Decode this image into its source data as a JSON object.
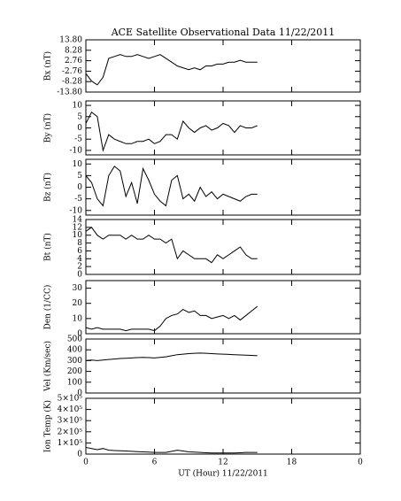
{
  "chart_data": [
    {
      "type": "line",
      "title": "ACE Satellite Observational Data   11/22/2011",
      "ylabel": "Bx (nT)",
      "color": "#000000",
      "xlim": [
        0,
        24
      ],
      "ylim": [
        -13.8,
        13.8
      ],
      "yticks": [
        {
          "value": 13.8,
          "label": "13.80"
        },
        8.28,
        2.76,
        -2.76,
        -8.28,
        {
          "value": -13.8,
          "label": "-13.80"
        }
      ],
      "x": [
        0,
        0.5,
        1,
        1.5,
        2,
        2.5,
        3,
        3.5,
        4,
        4.5,
        5,
        5.5,
        6,
        6.5,
        7,
        7.5,
        8,
        8.5,
        9,
        9.5,
        10,
        10.5,
        11,
        11.5,
        12,
        12.5,
        13,
        13.5,
        14,
        14.5,
        15
      ],
      "values": [
        -4,
        -8,
        -10,
        -6,
        4,
        5,
        6,
        5,
        5,
        6,
        5,
        4,
        5,
        6,
        4,
        2,
        0,
        -1,
        -2,
        -1,
        -2,
        0,
        0,
        1,
        1,
        2,
        2,
        3,
        2,
        2,
        2
      ]
    },
    {
      "type": "line",
      "ylabel": "By (nT)",
      "color": "#000000",
      "xlim": [
        0,
        24
      ],
      "ylim": [
        -12,
        12
      ],
      "yticks": [
        10,
        5,
        0,
        -5,
        -10
      ],
      "x": [
        0,
        0.5,
        1,
        1.5,
        2,
        2.5,
        3,
        3.5,
        4,
        4.5,
        5,
        5.5,
        6,
        6.5,
        7,
        7.5,
        8,
        8.5,
        9,
        9.5,
        10,
        10.5,
        11,
        11.5,
        12,
        12.5,
        13,
        13.5,
        14,
        14.5,
        15
      ],
      "values": [
        2,
        7,
        5,
        -10,
        -3,
        -5,
        -6,
        -7,
        -7,
        -6,
        -6,
        -5,
        -7,
        -6,
        -3,
        -3,
        -5,
        3,
        0,
        -2,
        0,
        1,
        -1,
        0,
        2,
        1,
        -2,
        1,
        0,
        0,
        1
      ]
    },
    {
      "type": "line",
      "ylabel": "Bz (nT)",
      "color": "#000000",
      "xlim": [
        0,
        24
      ],
      "ylim": [
        -12,
        12
      ],
      "yticks": [
        10,
        5,
        0,
        -5,
        -10
      ],
      "x": [
        0,
        0.5,
        1,
        1.5,
        2,
        2.5,
        3,
        3.5,
        4,
        4.5,
        5,
        5.5,
        6,
        6.5,
        7,
        7.5,
        8,
        8.5,
        9,
        9.5,
        10,
        10.5,
        11,
        11.5,
        12,
        12.5,
        13,
        13.5,
        14,
        14.5,
        15
      ],
      "values": [
        5,
        2,
        -5,
        -8,
        5,
        9,
        7,
        -4,
        2,
        -7,
        8,
        3,
        -3,
        -6,
        -8,
        3,
        5,
        -5,
        -3,
        -6,
        0,
        -4,
        -2,
        -5,
        -3,
        -4,
        -5,
        -6,
        -4,
        -3,
        -3
      ]
    },
    {
      "type": "line",
      "ylabel": "Bt (nT)",
      "color": "#000000",
      "xlim": [
        0,
        24
      ],
      "ylim": [
        0,
        14
      ],
      "yticks": [
        14,
        12,
        10,
        8,
        6,
        4,
        2,
        0
      ],
      "x": [
        0,
        0.5,
        1,
        1.5,
        2,
        2.5,
        3,
        3.5,
        4,
        4.5,
        5,
        5.5,
        6,
        6.5,
        7,
        7.5,
        8,
        8.5,
        9,
        9.5,
        10,
        10.5,
        11,
        11.5,
        12,
        12.5,
        13,
        13.5,
        14,
        14.5,
        15
      ],
      "values": [
        11,
        12,
        10,
        9,
        10,
        10,
        10,
        9,
        10,
        9,
        9,
        10,
        9,
        9,
        8,
        9,
        4,
        6,
        5,
        4,
        4,
        4,
        3,
        5,
        4,
        5,
        6,
        7,
        5,
        4,
        4
      ]
    },
    {
      "type": "line",
      "ylabel": "Den (1/CC)",
      "color": "#000000",
      "xlim": [
        0,
        24
      ],
      "ylim": [
        0,
        35
      ],
      "yticks": [
        30,
        20,
        10,
        0
      ],
      "x": [
        0,
        0.5,
        1,
        1.5,
        2,
        2.5,
        3,
        3.5,
        4,
        4.5,
        5,
        5.5,
        6,
        6.5,
        7,
        7.5,
        8,
        8.5,
        9,
        9.5,
        10,
        10.5,
        11,
        11.5,
        12,
        12.5,
        13,
        13.5,
        14,
        14.5,
        15
      ],
      "values": [
        4,
        3,
        4,
        3,
        3,
        3,
        3,
        2,
        3,
        3,
        3,
        3,
        2,
        5,
        10,
        12,
        13,
        16,
        14,
        15,
        12,
        12,
        10,
        11,
        12,
        10,
        12,
        9,
        12,
        15,
        18
      ]
    },
    {
      "type": "line",
      "ylabel": "Vel (Km/sec)",
      "color": "#000000",
      "xlim": [
        0,
        24
      ],
      "ylim": [
        0,
        500
      ],
      "yticks": [
        500,
        400,
        300,
        200,
        100,
        0
      ],
      "x": [
        0,
        0.5,
        1,
        1.5,
        2,
        2.5,
        3,
        3.5,
        4,
        4.5,
        5,
        5.5,
        6,
        6.5,
        7,
        7.5,
        8,
        8.5,
        9,
        9.5,
        10,
        10.5,
        11,
        11.5,
        12,
        12.5,
        13,
        13.5,
        14,
        14.5,
        15
      ],
      "values": [
        300,
        305,
        300,
        305,
        310,
        315,
        320,
        322,
        325,
        328,
        330,
        328,
        325,
        330,
        335,
        345,
        355,
        360,
        365,
        368,
        370,
        368,
        365,
        362,
        360,
        358,
        355,
        352,
        350,
        348,
        345
      ]
    },
    {
      "type": "line",
      "ylabel": "Ion Temp (K)",
      "xlabel": "UT (Hour)  11/22/2011",
      "color": "#000000",
      "xlim": [
        0,
        24
      ],
      "ylim": [
        0,
        500000
      ],
      "xticks": [
        0,
        6,
        12,
        18,
        {
          "value": 24,
          "label": "0"
        }
      ],
      "yticks": [
        {
          "value": 500000,
          "label": "5×10⁵"
        },
        {
          "value": 400000,
          "label": "4×10⁵"
        },
        {
          "value": 300000,
          "label": "3×10⁵"
        },
        {
          "value": 200000,
          "label": "2×10⁵"
        },
        {
          "value": 100000,
          "label": "1×10⁵"
        },
        0
      ],
      "x": [
        0,
        0.5,
        1,
        1.5,
        2,
        2.5,
        3,
        3.5,
        4,
        4.5,
        5,
        5.5,
        6,
        6.5,
        7,
        7.5,
        8,
        8.5,
        9,
        9.5,
        10,
        10.5,
        11,
        11.5,
        12,
        12.5,
        13,
        13.5,
        14,
        14.5,
        15
      ],
      "values": [
        60000,
        50000,
        40000,
        50000,
        35000,
        32000,
        30000,
        28000,
        25000,
        22000,
        20000,
        18000,
        15000,
        15000,
        15000,
        25000,
        35000,
        28000,
        20000,
        18000,
        15000,
        12000,
        10000,
        10000,
        10000,
        10000,
        10000,
        12000,
        15000,
        15000,
        15000
      ]
    }
  ]
}
